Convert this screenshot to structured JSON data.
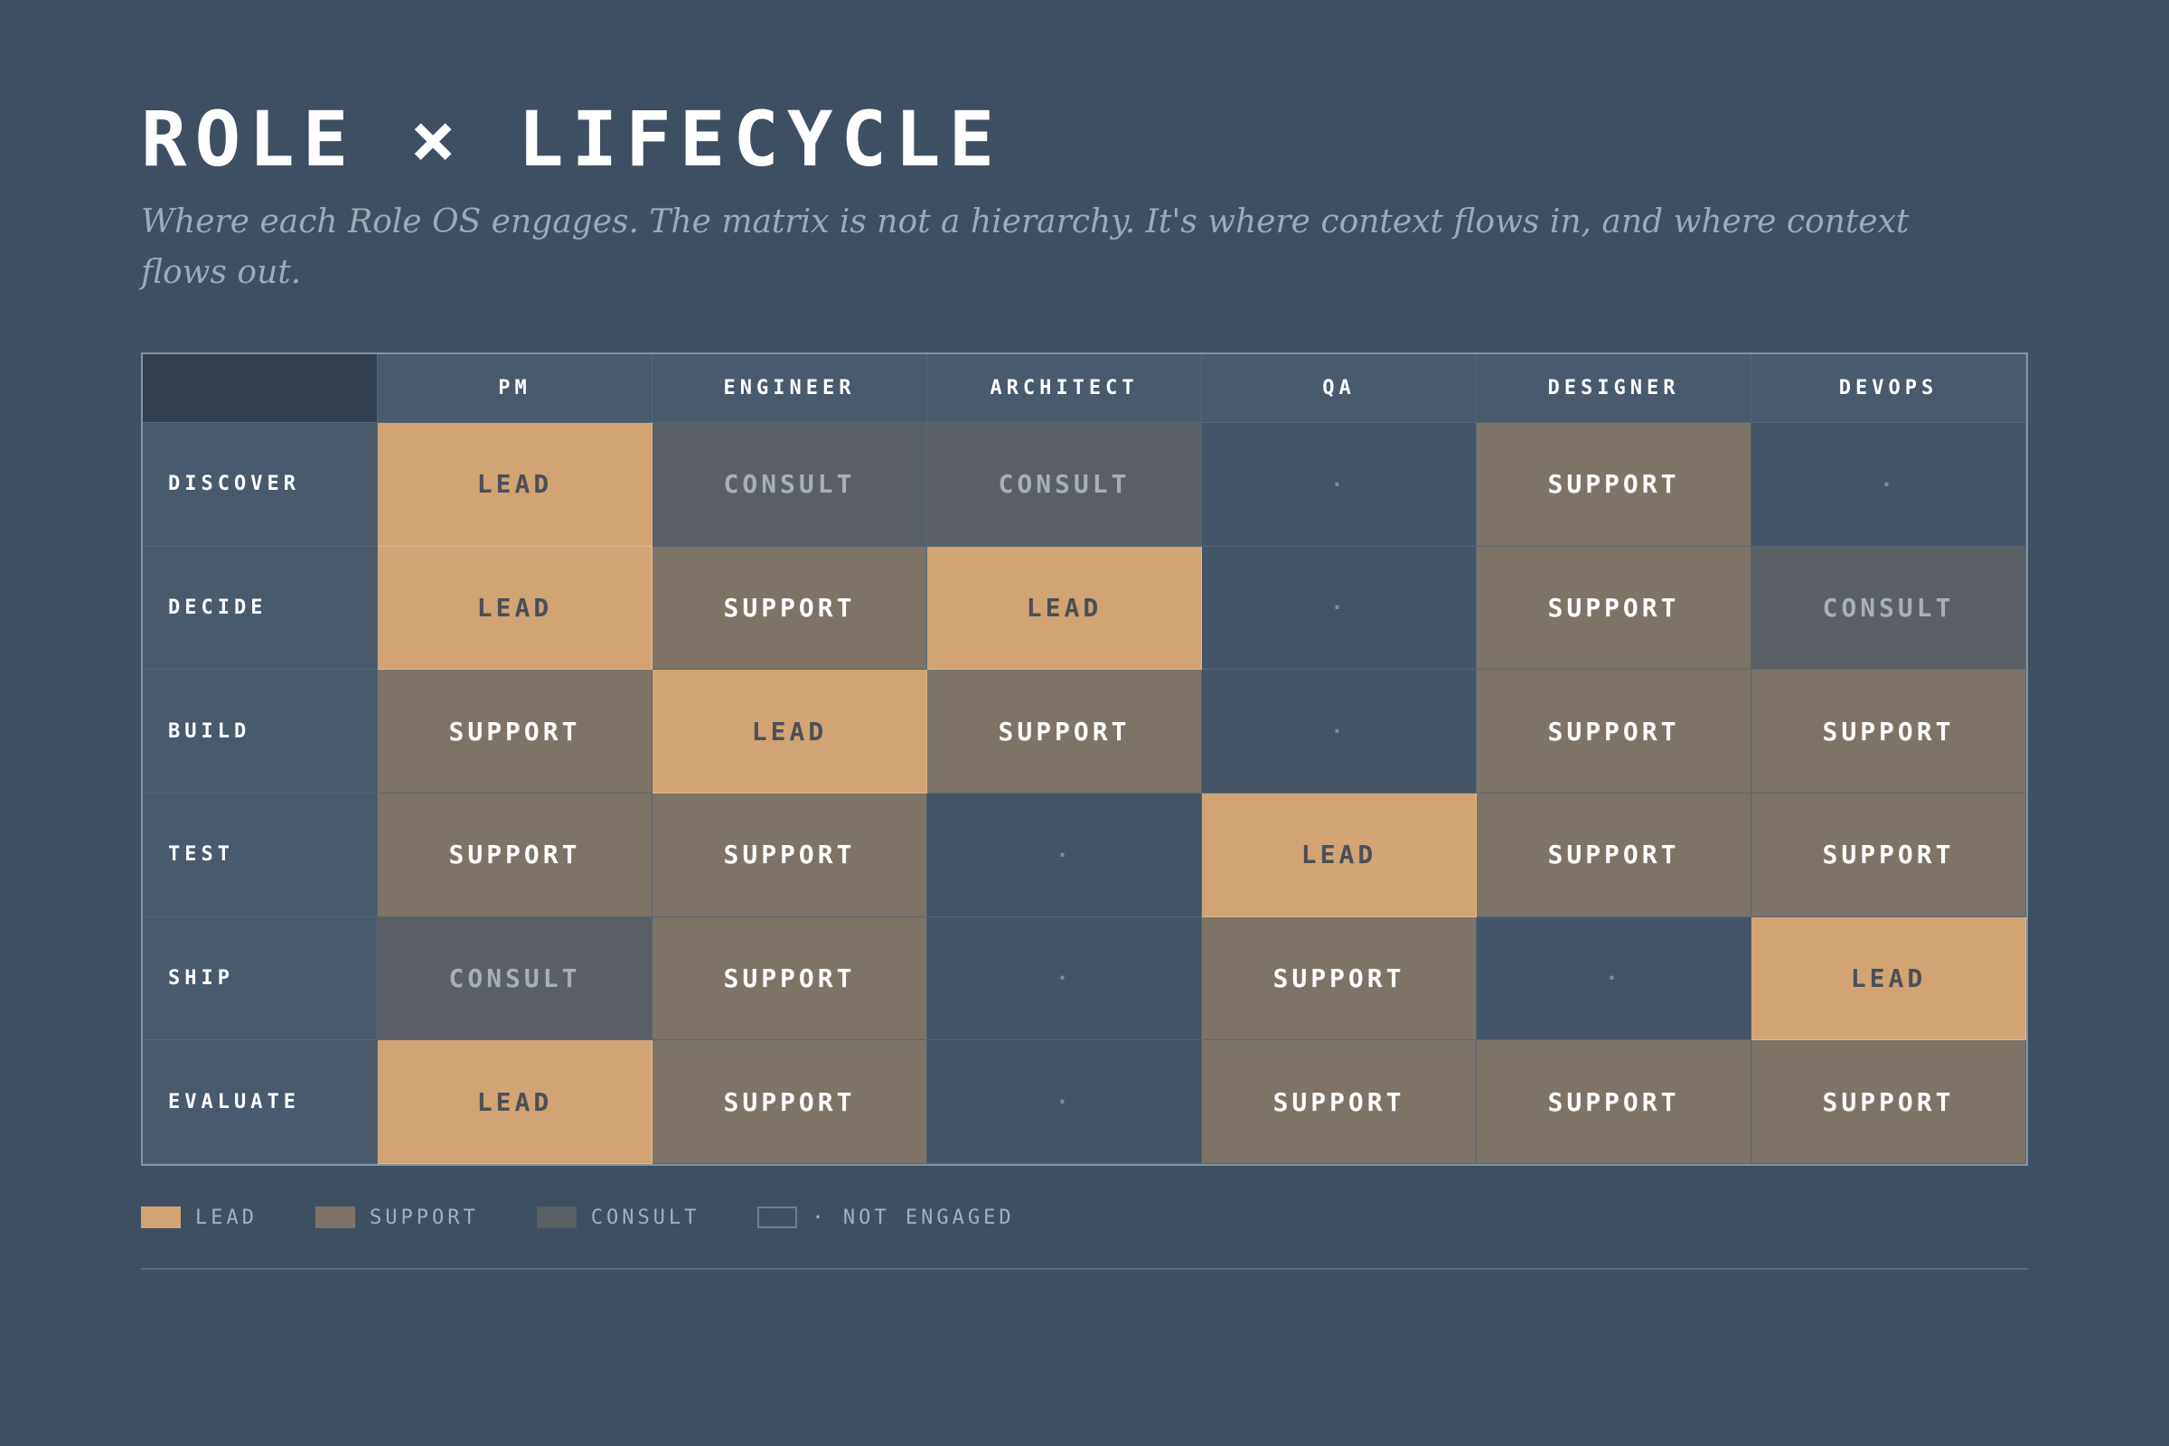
{
  "title": "ROLE × LIFECYCLE",
  "subtitle": "Where each Role OS engages. The matrix is not a hierarchy. It's where context flows in, and where context flows out.",
  "roles": [
    "PM",
    "ENGINEER",
    "ARCHITECT",
    "QA",
    "DESIGNER",
    "DEVOPS"
  ],
  "phases": [
    "DISCOVER",
    "DECIDE",
    "BUILD",
    "TEST",
    "SHIP",
    "EVALUATE"
  ],
  "state_labels": {
    "lead": "LEAD",
    "support": "SUPPORT",
    "consult": "CONSULT",
    "none": "·"
  },
  "matrix": [
    [
      "lead",
      "consult",
      "consult",
      "none",
      "support",
      "none"
    ],
    [
      "lead",
      "support",
      "lead",
      "none",
      "support",
      "consult"
    ],
    [
      "support",
      "lead",
      "support",
      "none",
      "support",
      "support"
    ],
    [
      "support",
      "support",
      "none",
      "lead",
      "support",
      "support"
    ],
    [
      "consult",
      "support",
      "none",
      "support",
      "none",
      "lead"
    ],
    [
      "lead",
      "support",
      "none",
      "support",
      "support",
      "support"
    ]
  ],
  "legend": [
    {
      "key": "lead",
      "label": "LEAD"
    },
    {
      "key": "support",
      "label": "SUPPORT"
    },
    {
      "key": "consult",
      "label": "CONSULT"
    },
    {
      "key": "none",
      "label": "· NOT ENGAGED"
    }
  ],
  "colors": {
    "background": "#3e4f61",
    "lead": "#d2a473",
    "support": "#7d7367",
    "consult": "#5a5f66",
    "not_engaged": "#435467"
  }
}
